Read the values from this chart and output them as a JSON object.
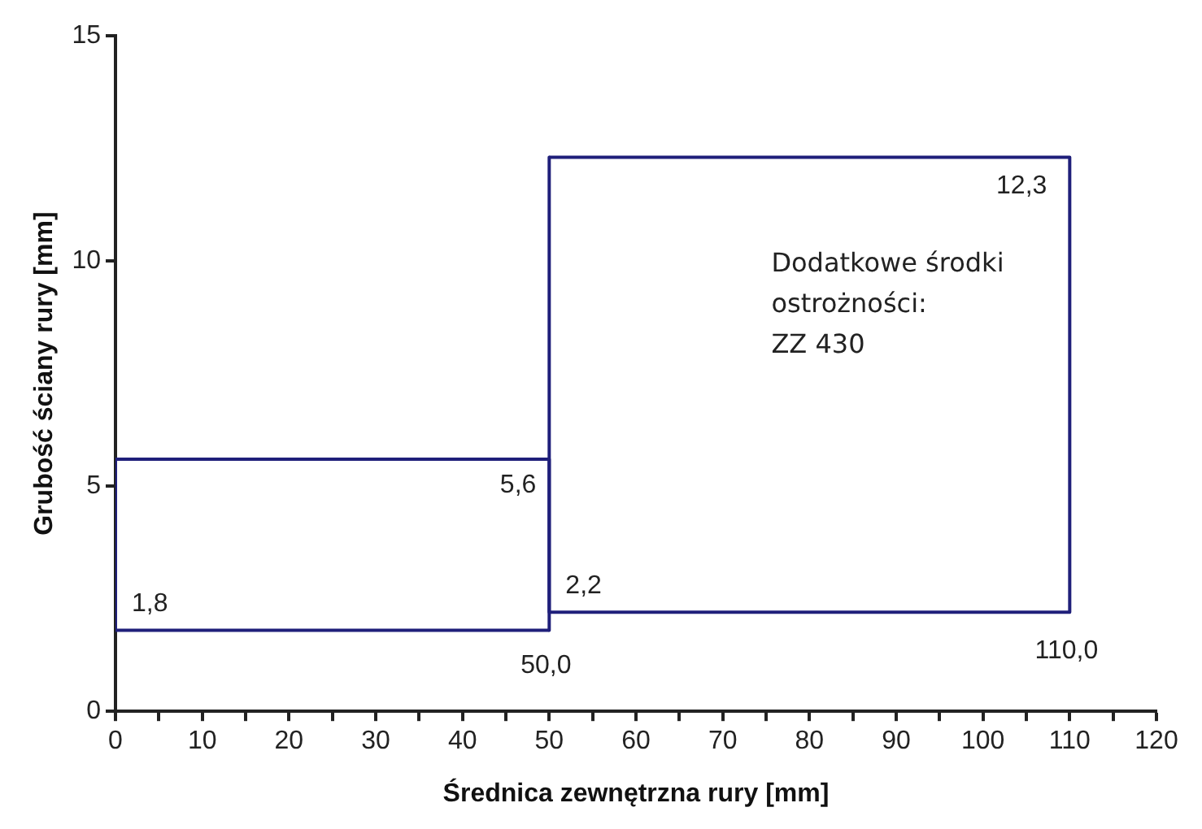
{
  "chart_data": {
    "type": "line",
    "xlabel": "Średnica zewnętrzna rury [mm]",
    "ylabel": "Grubość ściany rury [mm]",
    "series": [
      {
        "color": "#1f1f7a",
        "x": [
          0,
          0,
          50
        ],
        "values": [
          5.6,
          1.8,
          1.8
        ]
      },
      {
        "color": "#1f1f7a",
        "x": [
          0,
          50,
          50
        ],
        "values": [
          5.6,
          5.6,
          1.8
        ]
      },
      {
        "color": "#1f1f7a",
        "x": [
          50,
          50,
          110
        ],
        "values": [
          12.3,
          2.2,
          2.2
        ]
      },
      {
        "color": "#1f1f7a",
        "x": [
          50,
          110,
          110
        ],
        "values": [
          12.3,
          12.3,
          2.2
        ]
      }
    ],
    "xlim": [
      0,
      120
    ],
    "xticks": [
      0,
      {
        "value": 5,
        "label": null
      },
      10,
      {
        "value": 15,
        "label": null
      },
      20,
      {
        "value": 25,
        "label": null
      },
      30,
      {
        "value": 35,
        "label": null
      },
      40,
      {
        "value": 45,
        "label": null
      },
      50,
      {
        "value": 55,
        "label": null
      },
      60,
      {
        "value": 65,
        "label": null
      },
      70,
      {
        "value": 75,
        "label": null
      },
      80,
      {
        "value": 85,
        "label": null
      },
      90,
      {
        "value": 95,
        "label": null
      },
      100,
      {
        "value": 105,
        "label": null
      },
      110,
      {
        "value": 115,
        "label": null
      },
      120
    ],
    "ylim": [
      0,
      15
    ],
    "yticks": [
      0,
      5,
      10,
      15
    ],
    "grid": false,
    "legend": false,
    "marker": "none",
    "line_style": "solid",
    "annotations": [
      {
        "text": "1,8",
        "x": 0,
        "y": 1.8
      },
      {
        "text": "5,6",
        "x": 50,
        "y": 5.6
      },
      {
        "text": "50,0",
        "x": 50,
        "y": 1.8
      },
      {
        "text": "2,2",
        "x": 50,
        "y": 2.2
      },
      {
        "text": "12,3",
        "x": 110,
        "y": 12.3
      },
      {
        "text": "110,0",
        "x": 110,
        "y": 2.2
      },
      "Dodatkowe środki ostrożności: ZZ 430"
    ]
  }
}
